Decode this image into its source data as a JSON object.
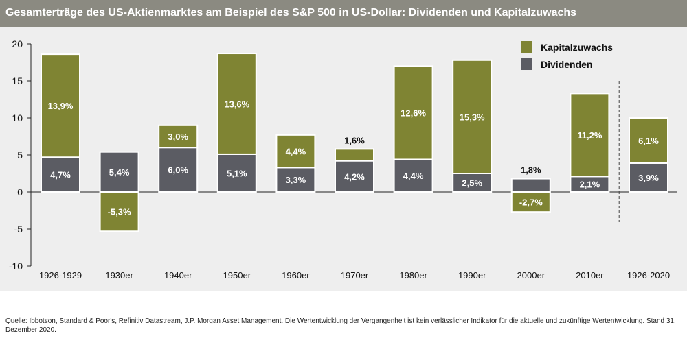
{
  "title": "Gesamterträge des US-Aktienmarktes am Beispiel des S&P 500 in US-Dollar: Dividenden und Kapitalzuwachs",
  "source": "Quelle: Ibbotson, Standard & Poor's, Refinitiv Datastream, J.P. Morgan Asset Management. Die Wertentwicklung der Vergangenheit ist kein verlässlicher Indikator für die aktuelle und zukünftige Wertentwicklung. Stand 31. Dezember 2020.",
  "colors": {
    "kapitalzuwachs": "#7f8433",
    "dividenden": "#5b5c63",
    "background": "#eeeeee",
    "title_bar": "#8b8a81"
  },
  "chart_data": {
    "type": "bar",
    "stacked": true,
    "categories": [
      "1926-1929",
      "1930er",
      "1940er",
      "1950er",
      "1960er",
      "1970er",
      "1980er",
      "1990er",
      "2000er",
      "2010er",
      "1926-2020"
    ],
    "series": [
      {
        "name": "Dividenden",
        "values": [
          4.7,
          5.4,
          6.0,
          5.1,
          3.3,
          4.2,
          4.4,
          2.5,
          1.8,
          2.1,
          3.9
        ],
        "labels": [
          "4,7%",
          "5,4%",
          "6,0%",
          "5,1%",
          "3,3%",
          "4,2%",
          "4,4%",
          "2,5%",
          "",
          "2,1%",
          "3,9%"
        ]
      },
      {
        "name": "Kapitalzuwachs",
        "values": [
          13.9,
          -5.3,
          3.0,
          13.6,
          4.4,
          1.6,
          12.6,
          15.3,
          -2.7,
          11.2,
          6.1
        ],
        "labels": [
          "13,9%",
          "-5,3%",
          "3,0%",
          "13,6%",
          "4,4%",
          "",
          "12,6%",
          "15,3%",
          "-2,7%",
          "11,2%",
          "6,1%"
        ]
      }
    ],
    "top_labels": [
      "",
      "",
      "",
      "",
      "",
      "1,6%",
      "",
      "",
      "1,8%",
      "",
      ""
    ],
    "ylim": [
      -10,
      20
    ],
    "yticks": [
      "-10",
      "-5",
      "0",
      "5",
      "10",
      "15",
      "20"
    ],
    "legend": [
      "Kapitalzuwachs",
      "Dividenden"
    ],
    "legend_position": "top-right",
    "separator_before_last_category": true,
    "grid": false
  }
}
